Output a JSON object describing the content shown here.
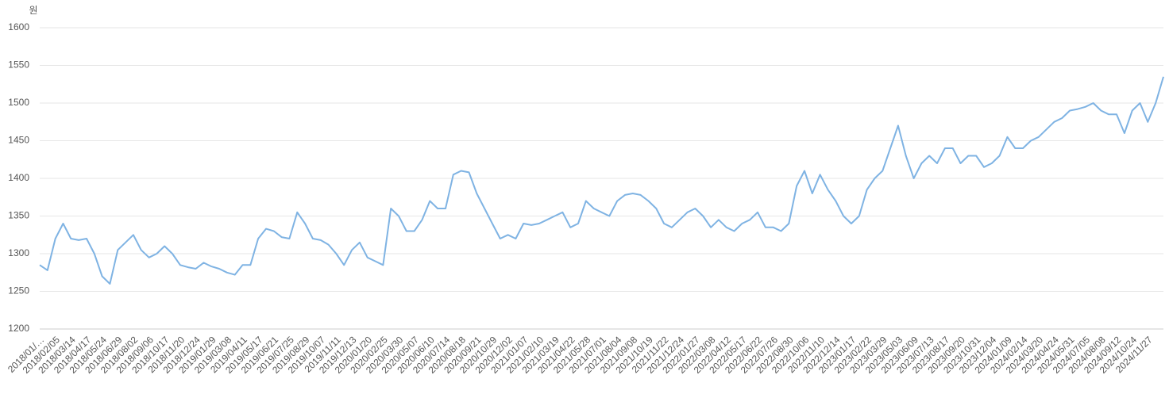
{
  "chart_data": {
    "type": "line",
    "y_label": "원",
    "categories": [
      "2018/01/…",
      null,
      "2018/02/05",
      null,
      "2018/03/14",
      null,
      "2018/04/17",
      null,
      "2018/05/24",
      null,
      "2018/06/29",
      null,
      "2018/08/02",
      null,
      "2018/09/06",
      null,
      "2018/10/17",
      null,
      "2018/11/20",
      null,
      "2018/12/24",
      null,
      "2019/01/29",
      null,
      "2019/03/08",
      null,
      "2019/04/11",
      null,
      "2019/05/17",
      null,
      "2019/06/21",
      null,
      "2019/07/25",
      null,
      "2019/08/29",
      null,
      "2019/10/07",
      null,
      "2019/11/11",
      null,
      "2019/12/13",
      null,
      "2020/01/20",
      null,
      "2020/02/25",
      null,
      "2020/03/30",
      null,
      "2020/05/07",
      null,
      "2020/06/10",
      null,
      "2020/07/14",
      null,
      "2020/08/18",
      null,
      "2020/09/21",
      null,
      "2020/10/29",
      null,
      "2020/12/02",
      null,
      "2021/01/07",
      null,
      "2021/02/10",
      null,
      "2021/03/19",
      null,
      "2021/04/22",
      null,
      "2021/05/28",
      null,
      "2021/07/01",
      null,
      "2021/08/04",
      null,
      "2021/09/08",
      null,
      "2021/10/19",
      null,
      "2021/11/22",
      null,
      "2021/12/24",
      null,
      "2022/01/27",
      null,
      "2022/03/08",
      null,
      "2022/04/12",
      null,
      "2022/05/17",
      null,
      "2022/06/22",
      null,
      "2022/07/26",
      null,
      "2022/08/30",
      null,
      "2022/10/06",
      null,
      "2022/11/10",
      null,
      "2022/12/14",
      null,
      "2023/01/17",
      null,
      "2023/02/22",
      null,
      "2023/03/29",
      null,
      "2023/05/03",
      null,
      "2023/06/09",
      null,
      "2023/07/13",
      null,
      "2023/08/17",
      null,
      "2023/09/20",
      null,
      "2023/10/31",
      null,
      "2023/12/04",
      null,
      "2024/01/09",
      null,
      "2024/02/14",
      null,
      "2024/03/20",
      null,
      "2024/04/24",
      null,
      "2024/05/31",
      null,
      "2024/07/05",
      null,
      "2024/08/08",
      null,
      "2024/09/12",
      null,
      "2024/10/24",
      null,
      "2024/11/27",
      null,
      null
    ],
    "values": [
      1285,
      1278,
      1320,
      1340,
      1320,
      1318,
      1320,
      1300,
      1270,
      1260,
      1305,
      1315,
      1325,
      1305,
      1295,
      1300,
      1310,
      1300,
      1285,
      1282,
      1280,
      1288,
      1283,
      1280,
      1275,
      1272,
      1285,
      1285,
      1320,
      1333,
      1330,
      1322,
      1320,
      1355,
      1340,
      1320,
      1318,
      1312,
      1300,
      1285,
      1305,
      1315,
      1295,
      1290,
      1285,
      1360,
      1350,
      1330,
      1330,
      1345,
      1370,
      1360,
      1360,
      1405,
      1410,
      1408,
      1380,
      1360,
      1340,
      1320,
      1325,
      1320,
      1340,
      1338,
      1340,
      1345,
      1350,
      1355,
      1335,
      1340,
      1370,
      1360,
      1355,
      1350,
      1370,
      1378,
      1380,
      1378,
      1370,
      1360,
      1340,
      1335,
      1345,
      1355,
      1360,
      1350,
      1335,
      1345,
      1335,
      1330,
      1340,
      1345,
      1355,
      1335,
      1335,
      1330,
      1340,
      1390,
      1410,
      1380,
      1405,
      1385,
      1370,
      1350,
      1340,
      1350,
      1385,
      1400,
      1410,
      1440,
      1470,
      1430,
      1400,
      1420,
      1430,
      1420,
      1440,
      1440,
      1420,
      1430,
      1430,
      1415,
      1420,
      1430,
      1455,
      1440,
      1440,
      1450,
      1455,
      1465,
      1475,
      1480,
      1490,
      1492,
      1495,
      1500,
      1490,
      1485,
      1485,
      1460,
      1490,
      1500,
      1475,
      1500,
      1535
    ],
    "color": "#7fb3e3",
    "ylim": [
      1200,
      1600
    ],
    "yticks": [
      1200,
      1250,
      1300,
      1350,
      1400,
      1450,
      1500,
      1550,
      1600
    ],
    "grid": true
  }
}
